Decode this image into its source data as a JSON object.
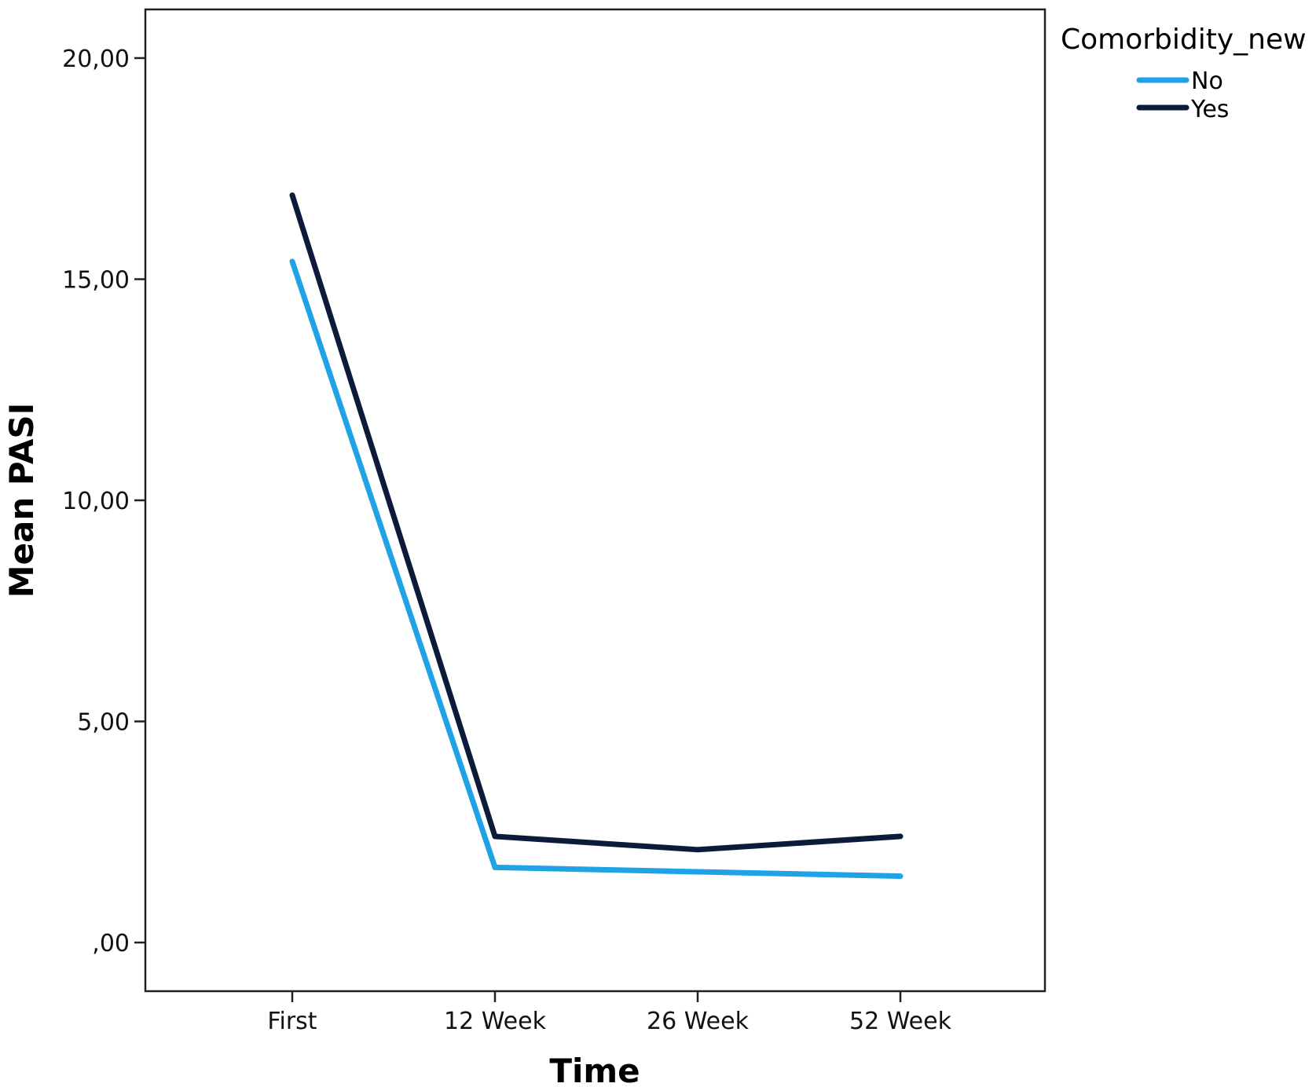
{
  "chart_data": {
    "type": "line",
    "xlabel": "Time",
    "ylabel": "Mean PASI",
    "categories": [
      "First",
      "12 Week",
      "26 Week",
      "52 Week"
    ],
    "ylim": [
      -1.1,
      21.1
    ],
    "yticks": [
      0,
      5,
      10,
      15,
      20
    ],
    "ytick_labels": [
      ",00",
      "5,00",
      "10,00",
      "15,00",
      "20,00"
    ],
    "grid": false,
    "legend": {
      "title": "Comorbidity_new",
      "placement": "top-right, outside plot"
    },
    "series": [
      {
        "name": "No",
        "color": "#1fa2e6",
        "values": [
          15.4,
          1.7,
          1.6,
          1.5
        ]
      },
      {
        "name": "Yes",
        "color": "#0d1b3a",
        "values": [
          16.9,
          2.4,
          2.1,
          2.4
        ]
      }
    ]
  }
}
